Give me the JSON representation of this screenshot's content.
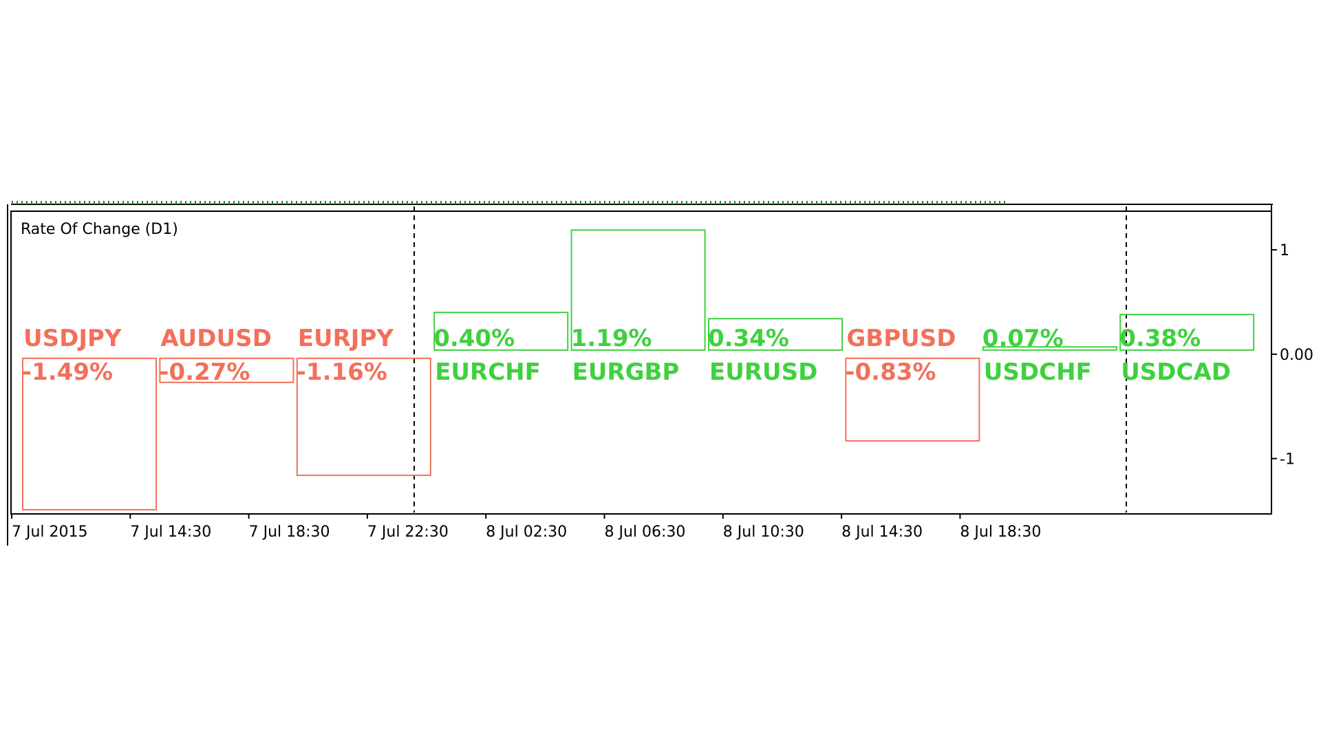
{
  "panel_title": "Rate Of Change (D1)",
  "colors": {
    "positive": "#3ed13e",
    "negative": "#f2705a",
    "frame": "#000000",
    "top_ticks": "#1e8a1e"
  },
  "chart_data": {
    "type": "bar",
    "title": "Rate Of Change (D1)",
    "xlabel": "",
    "ylabel": "",
    "categories": [
      "USDJPY",
      "AUDUSD",
      "EURJPY",
      "EURCHF",
      "EURGBP",
      "EURUSD",
      "GBPUSD",
      "USDCHF",
      "USDCAD"
    ],
    "values": [
      -1.49,
      -0.27,
      -1.16,
      0.4,
      1.19,
      0.34,
      -0.83,
      0.07,
      0.38
    ],
    "labels": [
      "-1.49%",
      "-0.27%",
      "-1.16%",
      "0.40%",
      "1.19%",
      "0.34%",
      "-0.83%",
      "0.07%",
      "0.38%"
    ],
    "ylim": [
      -1.53,
      1.37
    ],
    "y_tick_labels": [
      "1",
      "0.00",
      "-1"
    ],
    "y_tick_values": [
      1,
      0,
      -1
    ],
    "x_tick_labels": [
      "7 Jul 2015",
      "7 Jul 14:30",
      "7 Jul 18:30",
      "7 Jul 22:30",
      "8 Jul 02:30",
      "8 Jul 06:30",
      "8 Jul 10:30",
      "8 Jul 14:30",
      "8 Jul 18:30"
    ],
    "grid": false
  }
}
